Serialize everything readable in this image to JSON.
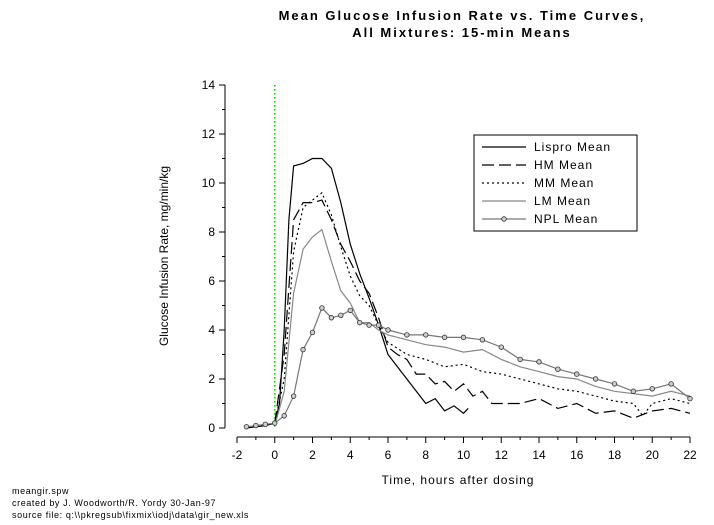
{
  "chart_data": {
    "type": "line",
    "title": "Mean Glucose Infusion Rate vs. Time Curves,",
    "subtitle": "All Mixtures: 15-min Means",
    "x_label": "Time, hours after dosing",
    "y_label": "Glucose Infusion Rate, mg/min/kg",
    "xlim": [
      -2,
      22
    ],
    "ylim": [
      0,
      14
    ],
    "xticks": [
      -2,
      0,
      2,
      4,
      6,
      8,
      10,
      12,
      14,
      16,
      18,
      20,
      22
    ],
    "yticks": [
      0,
      2,
      4,
      6,
      8,
      10,
      12,
      14
    ],
    "vline": {
      "x": 0,
      "color": "#00cc00"
    },
    "legend": "upper right",
    "annotations": [
      "meangir.spw",
      "created by J. Woodworth/R. Yordy  30-Jan-97",
      "source file:  q:\\\\pkregsub\\fixmix\\iodj\\data\\gir_new.xls"
    ],
    "series": [
      {
        "name": "Lispro Mean",
        "color": "#000000",
        "dash": "solid",
        "marker": false,
        "x": [
          -1.5,
          -1,
          -0.5,
          0,
          0.25,
          0.5,
          0.75,
          1,
          1.5,
          2,
          2.5,
          3,
          3.5,
          4,
          4.5,
          5,
          5.5,
          6,
          6.5,
          7,
          7.5,
          8,
          8.5,
          9,
          9.5,
          10,
          10.25
        ],
        "values": [
          0,
          0.05,
          0.1,
          0.2,
          1,
          4,
          8.5,
          10.7,
          10.8,
          11.0,
          11.0,
          10.6,
          9.2,
          7.5,
          6.3,
          5.3,
          4.2,
          3.0,
          2.5,
          2.0,
          1.5,
          1.0,
          1.2,
          0.7,
          0.9,
          0.6,
          0.8
        ]
      },
      {
        "name": "HM Mean",
        "color": "#000000",
        "dash": "long",
        "marker": false,
        "x": [
          0,
          0.5,
          1,
          1.5,
          2,
          2.5,
          3,
          3.5,
          4,
          4.5,
          5,
          5.5,
          6,
          6.5,
          7,
          7.5,
          8,
          8.5,
          9,
          9.5,
          10,
          10.5,
          11,
          11.5,
          12,
          13,
          14,
          15,
          16,
          17,
          18,
          19,
          20,
          21,
          22
        ],
        "values": [
          0.2,
          3,
          8.5,
          9.2,
          9.2,
          9.3,
          8.5,
          7.5,
          6.8,
          6.0,
          5.5,
          4.5,
          3.3,
          3.0,
          2.8,
          2.2,
          2.2,
          1.8,
          1.9,
          1.5,
          1.8,
          1.3,
          1.5,
          1.0,
          1.0,
          1.0,
          1.2,
          0.8,
          1.0,
          0.6,
          0.7,
          0.4,
          0.7,
          0.8,
          0.6
        ]
      },
      {
        "name": "MM Mean",
        "color": "#000000",
        "dash": "dot",
        "marker": false,
        "x": [
          0,
          0.5,
          1,
          1.5,
          2,
          2.5,
          3,
          3.5,
          4,
          4.5,
          5,
          5.5,
          6,
          7,
          8,
          9,
          10,
          11,
          12,
          13,
          14,
          15,
          16,
          17,
          18,
          19,
          19.5,
          20,
          21,
          22
        ],
        "values": [
          0.2,
          2,
          7.2,
          9.0,
          9.3,
          9.6,
          8.7,
          7.4,
          6.2,
          5.4,
          5.0,
          4.2,
          3.5,
          3.0,
          2.8,
          2.5,
          2.6,
          2.3,
          2.2,
          2.0,
          1.8,
          1.6,
          1.5,
          1.3,
          1.1,
          1.0,
          0.5,
          1.0,
          1.2,
          1.0
        ]
      },
      {
        "name": "LM Mean",
        "color": "#888888",
        "dash": "solid",
        "marker": false,
        "x": [
          0,
          0.5,
          1,
          1.5,
          2,
          2.5,
          3,
          3.5,
          4,
          4.5,
          5,
          5.5,
          6,
          7,
          8,
          9,
          10,
          11,
          12,
          13,
          14,
          15,
          16,
          17,
          18,
          19,
          20,
          21,
          22
        ],
        "values": [
          0.1,
          1.5,
          5.5,
          7.3,
          7.8,
          8.1,
          6.8,
          5.6,
          5.1,
          4.3,
          4.3,
          4.0,
          3.8,
          3.6,
          3.4,
          3.3,
          3.1,
          3.2,
          2.8,
          2.5,
          2.3,
          2.1,
          2.0,
          1.7,
          1.5,
          1.4,
          1.3,
          1.5,
          1.3
        ]
      },
      {
        "name": "NPL Mean",
        "color": "#777777",
        "dash": "solid",
        "marker": true,
        "x": [
          -1.5,
          -1,
          -0.5,
          0,
          0.5,
          1,
          1.5,
          2,
          2.5,
          3,
          3.5,
          4,
          4.5,
          5,
          5.5,
          6,
          7,
          8,
          9,
          10,
          11,
          12,
          13,
          14,
          15,
          16,
          17,
          18,
          19,
          20,
          21,
          22
        ],
        "values": [
          0.05,
          0.1,
          0.15,
          0.2,
          0.5,
          1.3,
          3.2,
          3.9,
          4.9,
          4.5,
          4.6,
          4.8,
          4.3,
          4.2,
          4.2,
          4.0,
          3.8,
          3.8,
          3.7,
          3.7,
          3.6,
          3.3,
          2.8,
          2.7,
          2.4,
          2.2,
          2.0,
          1.8,
          1.5,
          1.6,
          1.8,
          1.2
        ]
      }
    ]
  }
}
